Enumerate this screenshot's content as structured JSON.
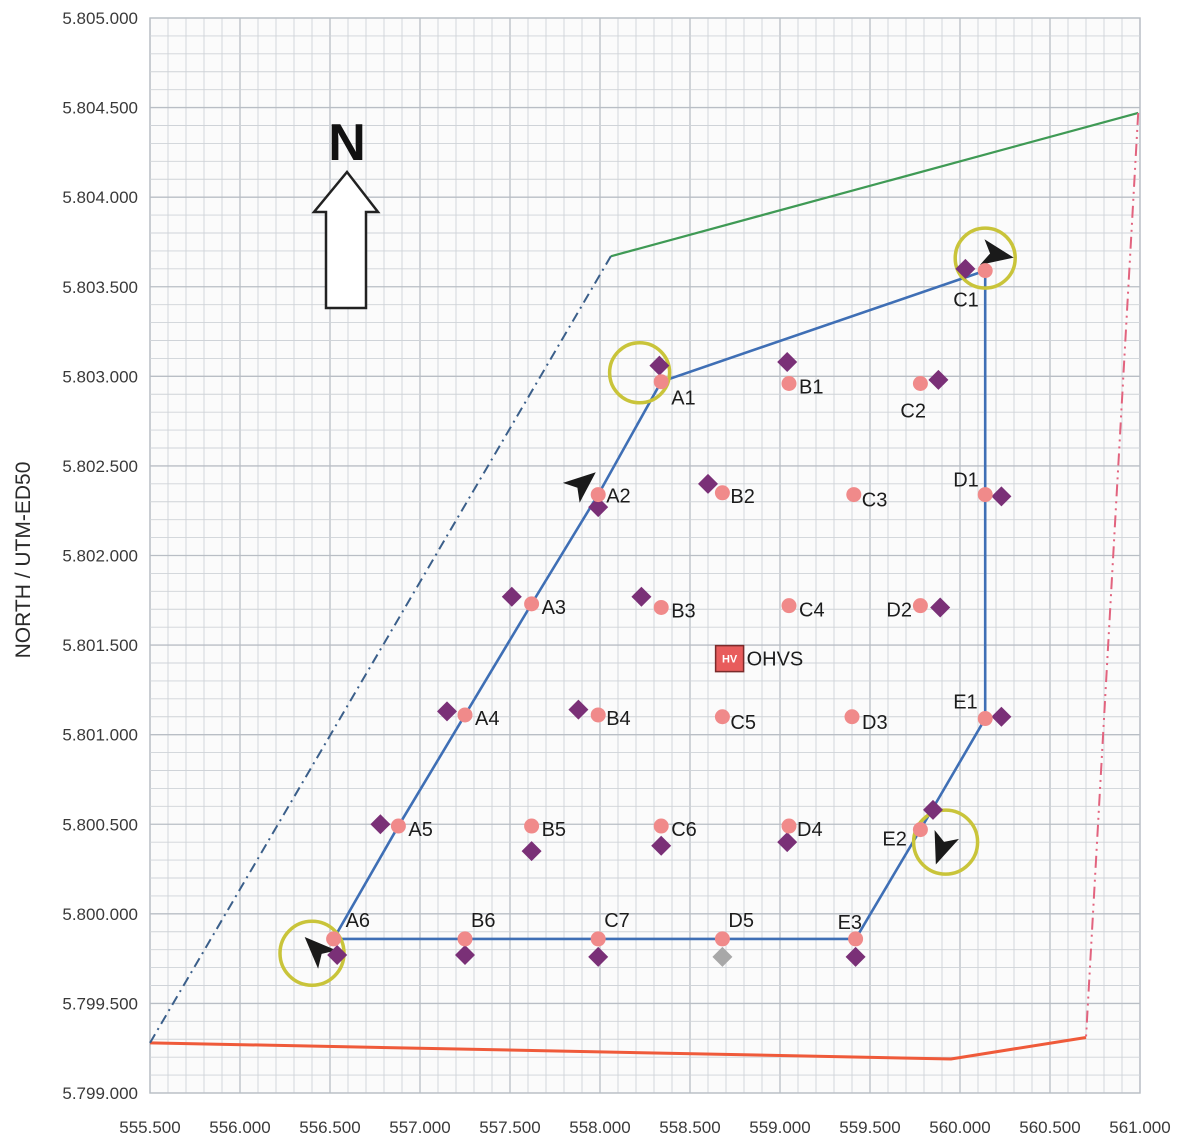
{
  "map": {
    "y_axis_title": "NORTH / UTM-ED50",
    "north_label": "N",
    "x_range": [
      555500,
      561000
    ],
    "y_range": [
      5799000,
      5805000
    ],
    "x_ticks": [
      {
        "value": 555500,
        "label": "555.500"
      },
      {
        "value": 556000,
        "label": "556.000"
      },
      {
        "value": 556500,
        "label": "556.500"
      },
      {
        "value": 557000,
        "label": "557.000"
      },
      {
        "value": 557500,
        "label": "557.500"
      },
      {
        "value": 558000,
        "label": "558.000"
      },
      {
        "value": 558500,
        "label": "558.500"
      },
      {
        "value": 559000,
        "label": "559.000"
      },
      {
        "value": 559500,
        "label": "559.500"
      },
      {
        "value": 560000,
        "label": "560.000"
      },
      {
        "value": 560500,
        "label": "560.500"
      },
      {
        "value": 561000,
        "label": "561.000"
      }
    ],
    "y_ticks": [
      {
        "value": 5799000,
        "label": "5.799.000"
      },
      {
        "value": 5799500,
        "label": "5.799.500"
      },
      {
        "value": 5800000,
        "label": "5.800.000"
      },
      {
        "value": 5800500,
        "label": "5.800.500"
      },
      {
        "value": 5801000,
        "label": "5.801.000"
      },
      {
        "value": 5801500,
        "label": "5.801.500"
      },
      {
        "value": 5802000,
        "label": "5.802.000"
      },
      {
        "value": 5802500,
        "label": "5.802.500"
      },
      {
        "value": 5803000,
        "label": "5.803.000"
      },
      {
        "value": 5803500,
        "label": "5.803.500"
      },
      {
        "value": 5804000,
        "label": "5.804.000"
      },
      {
        "value": 5804500,
        "label": "5.804.500"
      },
      {
        "value": 5805000,
        "label": "5.805.000"
      }
    ],
    "colors": {
      "grid": "#cfd3d8",
      "grid_major": "#b9bec5",
      "route": "#3f6fb5",
      "point": "#f08a8a",
      "diamond": "#7a3077",
      "diamond_grey": "#a8a8a8",
      "marker_ring": "#c9c43a",
      "boundary_north": "#3f9a55",
      "boundary_south": "#ef5a3a",
      "boundary_west": "#3b5f8a",
      "boundary_east": "#e2637e",
      "hv_fill": "#e85c5c"
    },
    "points": [
      {
        "id": "A1",
        "label": "A1",
        "x": 558340,
        "y": 5802970,
        "dx": 558330,
        "dy": 5803060
      },
      {
        "id": "A2",
        "label": "A2",
        "x": 557990,
        "y": 5802340,
        "dx": 557990,
        "dy": 5802270
      },
      {
        "id": "A3",
        "label": "A3",
        "x": 557620,
        "y": 5801730,
        "dx": 557510,
        "dy": 5801770
      },
      {
        "id": "A4",
        "label": "A4",
        "x": 557250,
        "y": 5801110,
        "dx": 557150,
        "dy": 5801130
      },
      {
        "id": "A5",
        "label": "A5",
        "x": 556880,
        "y": 5800490,
        "dx": 556780,
        "dy": 5800500
      },
      {
        "id": "A6",
        "label": "A6",
        "x": 556520,
        "y": 5799860,
        "dx": 556540,
        "dy": 5799770
      },
      {
        "id": "B1",
        "label": "B1",
        "x": 559050,
        "y": 5802960,
        "dx": 559040,
        "dy": 5803080
      },
      {
        "id": "B2",
        "label": "B2",
        "x": 558680,
        "y": 5802350,
        "dx": 558600,
        "dy": 5802400
      },
      {
        "id": "B3",
        "label": "B3",
        "x": 558340,
        "y": 5801710,
        "dx": 558230,
        "dy": 5801770
      },
      {
        "id": "B4",
        "label": "B4",
        "x": 557990,
        "y": 5801110,
        "dx": 557880,
        "dy": 5801140
      },
      {
        "id": "B5",
        "label": "B5",
        "x": 557620,
        "y": 5800490,
        "dx": 557620,
        "dy": 5800350
      },
      {
        "id": "B6",
        "label": "B6",
        "x": 557250,
        "y": 5799860,
        "dx": 557250,
        "dy": 5799770
      },
      {
        "id": "C1",
        "label": "C1",
        "x": 560140,
        "y": 5803590,
        "dx": 560030,
        "dy": 5803600
      },
      {
        "id": "C2",
        "label": "C2",
        "x": 559780,
        "y": 5802960,
        "dx": 559880,
        "dy": 5802980
      },
      {
        "id": "C3",
        "label": "C3",
        "x": 559410,
        "y": 5802340,
        "dx": null,
        "dy": null
      },
      {
        "id": "C4",
        "label": "C4",
        "x": 559050,
        "y": 5801720,
        "dx": null,
        "dy": null
      },
      {
        "id": "C5",
        "label": "C5",
        "x": 558680,
        "y": 5801100,
        "dx": null,
        "dy": null
      },
      {
        "id": "C6",
        "label": "C6",
        "x": 558340,
        "y": 5800490,
        "dx": 558340,
        "dy": 5800380
      },
      {
        "id": "C7",
        "label": "C7",
        "x": 557990,
        "y": 5799860,
        "dx": 557990,
        "dy": 5799760
      },
      {
        "id": "D1",
        "label": "D1",
        "x": 560140,
        "y": 5802340,
        "dx": 560230,
        "dy": 5802330
      },
      {
        "id": "D2",
        "label": "D2",
        "x": 559780,
        "y": 5801720,
        "dx": 559890,
        "dy": 5801710
      },
      {
        "id": "D3",
        "label": "D3",
        "x": 559400,
        "y": 5801100,
        "dx": null,
        "dy": null
      },
      {
        "id": "D4",
        "label": "D4",
        "x": 559050,
        "y": 5800490,
        "dx": 559040,
        "dy": 5800400
      },
      {
        "id": "D5",
        "label": "D5",
        "x": 558680,
        "y": 5799860,
        "dx": 558680,
        "dy": 5799760,
        "dgrey": true
      },
      {
        "id": "E1",
        "label": "E1",
        "x": 560140,
        "y": 5801090,
        "dx": 560230,
        "dy": 5801100
      },
      {
        "id": "E2",
        "label": "E2",
        "x": 559780,
        "y": 5800470,
        "dx": 559850,
        "dy": 5800580
      },
      {
        "id": "E3",
        "label": "E3",
        "x": 559420,
        "y": 5799860,
        "dx": 559420,
        "dy": 5799760
      }
    ],
    "hv_station": {
      "badge": "HV",
      "label": "OHVS",
      "x": 558720,
      "y": 5801430
    }
  }
}
